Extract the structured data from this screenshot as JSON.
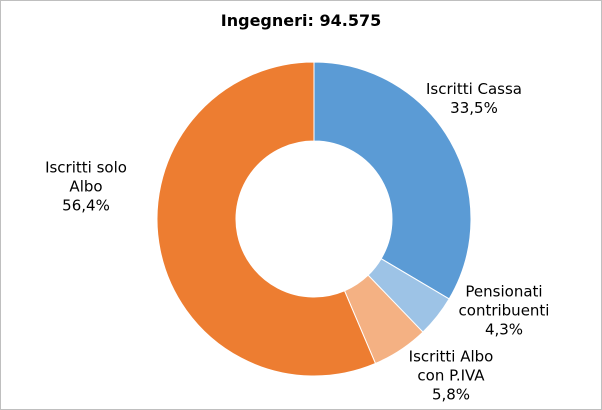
{
  "chart_data": {
    "type": "donut",
    "title": "Ingegneri: 94.575",
    "categories": [
      "Iscritti Cassa",
      "Pensionati\ncontribuenti",
      "Iscritti Albo\ncon P.IVA",
      "Iscritti solo\nAlbo"
    ],
    "values": [
      33.5,
      4.3,
      5.8,
      56.4
    ],
    "value_labels": [
      "33,5%",
      "4,3%",
      "5,8%",
      "56,4%"
    ],
    "colors": [
      "#5b9bd5",
      "#9dc3e6",
      "#f4b183",
      "#ed7d31"
    ]
  }
}
